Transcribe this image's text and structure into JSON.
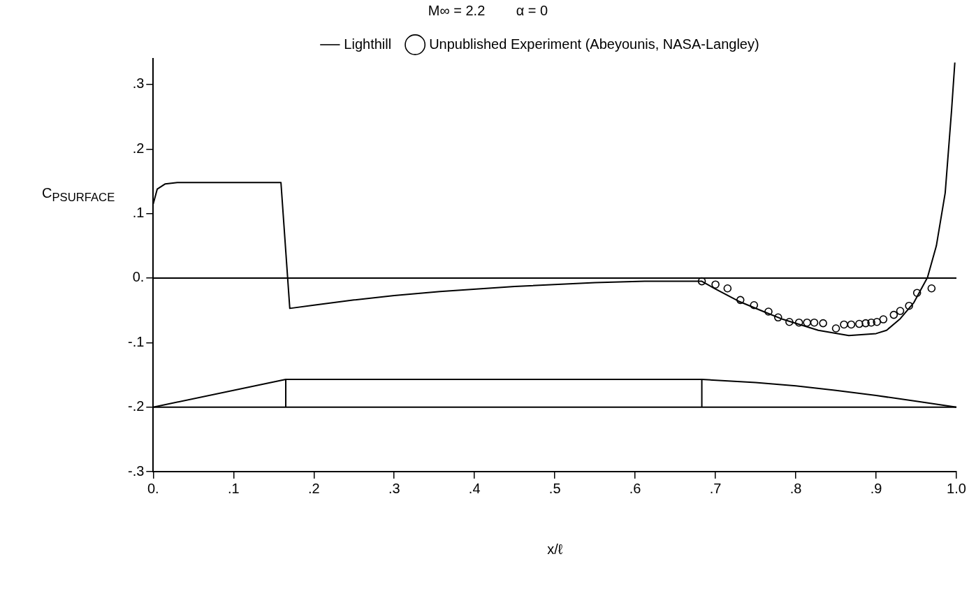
{
  "chart_data": {
    "type": "line",
    "title": "M∞ = 2.2        α = 0",
    "xlabel": "x/ℓ",
    "ylabel": "C$_{P}$$_{SURFACE}$",
    "xlim": [
      0,
      1
    ],
    "xticks": [
      {
        "value": 0,
        "label": "0."
      },
      {
        "value": 0.1,
        "label": ".1"
      },
      {
        "value": 0.2,
        "label": ".2"
      },
      {
        "value": 0.3,
        "label": ".3"
      },
      {
        "value": 0.4,
        "label": ".4"
      },
      {
        "value": 0.5,
        "label": ".5"
      },
      {
        "value": 0.6,
        "label": ".6"
      },
      {
        "value": 0.7,
        "label": ".7"
      },
      {
        "value": 0.8,
        "label": ".8"
      },
      {
        "value": 0.9,
        "label": ".9"
      },
      {
        "value": 1,
        "label": "1.0"
      }
    ],
    "ylim": [
      -0.3,
      0.34
    ],
    "yticks": [
      {
        "value": -0.3,
        "label": "-.3"
      },
      {
        "value": -0.2,
        "label": "-.2"
      },
      {
        "value": -0.1,
        "label": "-.1"
      },
      {
        "value": 0,
        "label": "0."
      },
      {
        "value": 0.1,
        "label": ".1"
      },
      {
        "value": 0.2,
        "label": ".2"
      },
      {
        "value": 0.3,
        "label": ".3"
      }
    ],
    "legend": "top",
    "ref_lines": [
      {
        "axis": "y",
        "value": 0,
        "color": "#000000"
      }
    ],
    "series": [
      {
        "name": "Lighthill",
        "color": "#000000",
        "marker": "none",
        "x": [
          0,
          0.005,
          0.015,
          0.03,
          0.1,
          0.159,
          0.17,
          0.2,
          0.25,
          0.3,
          0.357,
          0.45,
          0.55,
          0.612,
          0.683,
          0.7,
          0.729,
          0.76,
          0.784,
          0.828,
          0.866,
          0.9,
          0.913,
          0.93,
          0.947,
          0.964,
          0.975,
          0.986,
          0.994,
          0.998
        ],
        "values": [
          0.115,
          0.138,
          0.146,
          0.148,
          0.148,
          0.148,
          -0.047,
          -0.042,
          -0.034,
          -0.027,
          -0.021,
          -0.013,
          -0.007,
          -0.005,
          -0.005,
          -0.017,
          -0.036,
          -0.052,
          -0.064,
          -0.081,
          -0.089,
          -0.086,
          -0.081,
          -0.063,
          -0.038,
          0.001,
          0.05,
          0.132,
          0.261,
          0.334
        ]
      },
      {
        "name": "Unpublished Experiment (Abeyounis, NASA-Langley)",
        "type": "scatter",
        "color": "#000000",
        "marker": "circle",
        "x": [
          0.683,
          0.7,
          0.715,
          0.731,
          0.748,
          0.766,
          0.778,
          0.792,
          0.804,
          0.814,
          0.823,
          0.834,
          0.85,
          0.86,
          0.869,
          0.879,
          0.887,
          0.894,
          0.901,
          0.909,
          0.922,
          0.93,
          0.941,
          0.951,
          0.969
        ],
        "values": [
          -0.005,
          -0.01,
          -0.016,
          -0.034,
          -0.042,
          -0.052,
          -0.061,
          -0.068,
          -0.069,
          -0.069,
          -0.069,
          -0.07,
          -0.078,
          -0.072,
          -0.072,
          -0.071,
          -0.07,
          -0.069,
          -0.068,
          -0.064,
          -0.057,
          -0.051,
          -0.043,
          -0.023,
          -0.016
        ]
      },
      {
        "color": "#000000",
        "marker": "none",
        "x": [
          0,
          0.165,
          0.683,
          0.75,
          0.8,
          0.85,
          0.9,
          0.95,
          1
        ],
        "values": [
          -0.2,
          -0.157,
          -0.157,
          -0.162,
          -0.167,
          -0.174,
          -0.182,
          -0.191,
          -0.2
        ]
      },
      {
        "color": "#000000",
        "marker": "none",
        "x": [
          0,
          1
        ],
        "values": [
          -0.2,
          -0.2
        ]
      },
      {
        "color": "#000000",
        "marker": "none",
        "x": [
          0.165,
          0.165
        ],
        "values": [
          -0.2,
          -0.157
        ]
      },
      {
        "color": "#000000",
        "marker": "none",
        "x": [
          0.683,
          0.683
        ],
        "values": [
          -0.2,
          -0.157
        ]
      }
    ]
  }
}
